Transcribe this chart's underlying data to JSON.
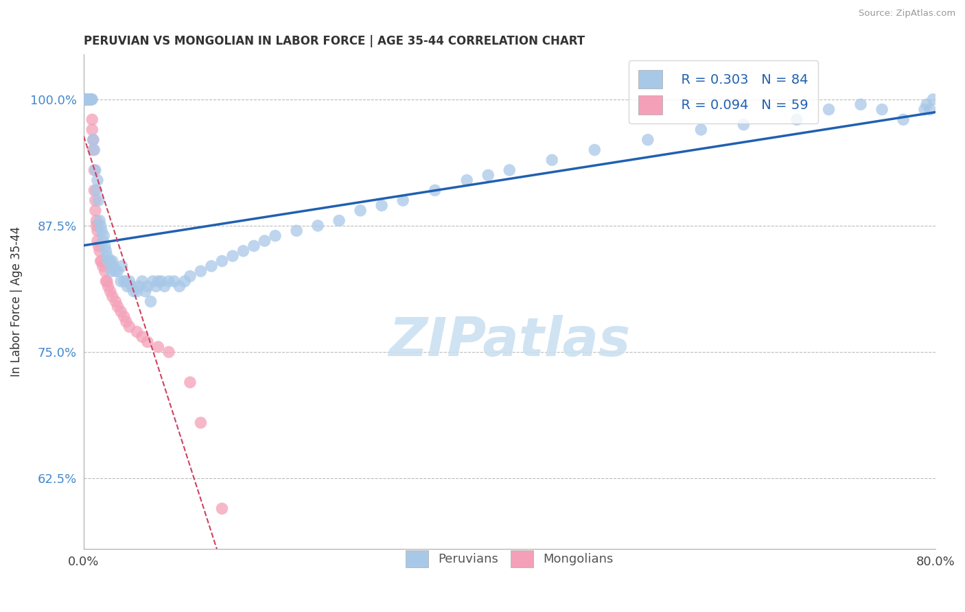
{
  "title": "PERUVIAN VS MONGOLIAN IN LABOR FORCE | AGE 35-44 CORRELATION CHART",
  "source": "Source: ZipAtlas.com",
  "ylabel": "In Labor Force | Age 35-44",
  "xlim": [
    0.0,
    0.8
  ],
  "ylim": [
    0.555,
    1.045
  ],
  "xtick_labels": [
    "0.0%",
    "80.0%"
  ],
  "xtick_vals": [
    0.0,
    0.8
  ],
  "ytick_labels": [
    "62.5%",
    "75.0%",
    "87.5%",
    "100.0%"
  ],
  "ytick_vals": [
    0.625,
    0.75,
    0.875,
    1.0
  ],
  "legend_r1": "R = 0.303   N = 84",
  "legend_r2": "R = 0.094   N = 59",
  "blue_color": "#A8C8E8",
  "pink_color": "#F4A0B8",
  "trend_blue": "#2060B0",
  "trend_pink": "#D04060",
  "watermark_color": "#C8DFF0",
  "background": "#FFFFFF",
  "grid_color": "#BBBBBB",
  "peru_x": [
    0.003,
    0.003,
    0.005,
    0.005,
    0.006,
    0.007,
    0.008,
    0.009,
    0.01,
    0.011,
    0.012,
    0.013,
    0.014,
    0.015,
    0.016,
    0.017,
    0.018,
    0.019,
    0.02,
    0.021,
    0.022,
    0.023,
    0.025,
    0.026,
    0.027,
    0.028,
    0.03,
    0.032,
    0.035,
    0.036,
    0.038,
    0.04,
    0.041,
    0.043,
    0.045,
    0.047,
    0.05,
    0.052,
    0.055,
    0.058,
    0.06,
    0.063,
    0.065,
    0.068,
    0.07,
    0.073,
    0.076,
    0.08,
    0.085,
    0.09,
    0.095,
    0.1,
    0.11,
    0.12,
    0.13,
    0.14,
    0.15,
    0.16,
    0.17,
    0.18,
    0.2,
    0.22,
    0.24,
    0.26,
    0.28,
    0.3,
    0.33,
    0.36,
    0.38,
    0.4,
    0.44,
    0.48,
    0.53,
    0.58,
    0.62,
    0.67,
    0.7,
    0.73,
    0.75,
    0.77,
    0.79,
    0.792,
    0.795,
    0.798
  ],
  "peru_y": [
    1.0,
    1.0,
    1.0,
    1.0,
    1.0,
    1.0,
    1.0,
    0.96,
    0.95,
    0.93,
    0.91,
    0.92,
    0.9,
    0.88,
    0.875,
    0.87,
    0.86,
    0.865,
    0.855,
    0.85,
    0.845,
    0.84,
    0.84,
    0.83,
    0.84,
    0.835,
    0.83,
    0.83,
    0.82,
    0.835,
    0.82,
    0.82,
    0.815,
    0.82,
    0.815,
    0.81,
    0.81,
    0.815,
    0.82,
    0.81,
    0.815,
    0.8,
    0.82,
    0.815,
    0.82,
    0.82,
    0.815,
    0.82,
    0.82,
    0.815,
    0.82,
    0.825,
    0.83,
    0.835,
    0.84,
    0.845,
    0.85,
    0.855,
    0.86,
    0.865,
    0.87,
    0.875,
    0.88,
    0.89,
    0.895,
    0.9,
    0.91,
    0.92,
    0.925,
    0.93,
    0.94,
    0.95,
    0.96,
    0.97,
    0.975,
    0.98,
    0.99,
    0.995,
    0.99,
    0.98,
    0.99,
    0.995,
    0.99,
    1.0
  ],
  "mongo_x": [
    0.001,
    0.001,
    0.001,
    0.002,
    0.002,
    0.002,
    0.002,
    0.003,
    0.003,
    0.003,
    0.003,
    0.004,
    0.004,
    0.004,
    0.005,
    0.005,
    0.005,
    0.006,
    0.006,
    0.006,
    0.007,
    0.007,
    0.008,
    0.008,
    0.009,
    0.009,
    0.01,
    0.01,
    0.011,
    0.011,
    0.012,
    0.012,
    0.013,
    0.013,
    0.014,
    0.015,
    0.016,
    0.017,
    0.018,
    0.02,
    0.021,
    0.022,
    0.023,
    0.025,
    0.027,
    0.03,
    0.032,
    0.035,
    0.038,
    0.04,
    0.043,
    0.05,
    0.055,
    0.06,
    0.07,
    0.08,
    0.1,
    0.11,
    0.13
  ],
  "mongo_y": [
    1.0,
    1.0,
    1.0,
    1.0,
    1.0,
    1.0,
    1.0,
    1.0,
    1.0,
    1.0,
    1.0,
    1.0,
    1.0,
    1.0,
    1.0,
    1.0,
    1.0,
    1.0,
    1.0,
    1.0,
    1.0,
    1.0,
    0.98,
    0.97,
    0.96,
    0.95,
    0.93,
    0.91,
    0.9,
    0.89,
    0.88,
    0.875,
    0.87,
    0.86,
    0.855,
    0.85,
    0.84,
    0.84,
    0.835,
    0.83,
    0.82,
    0.82,
    0.815,
    0.81,
    0.805,
    0.8,
    0.795,
    0.79,
    0.785,
    0.78,
    0.775,
    0.77,
    0.765,
    0.76,
    0.755,
    0.75,
    0.72,
    0.68,
    0.595
  ]
}
